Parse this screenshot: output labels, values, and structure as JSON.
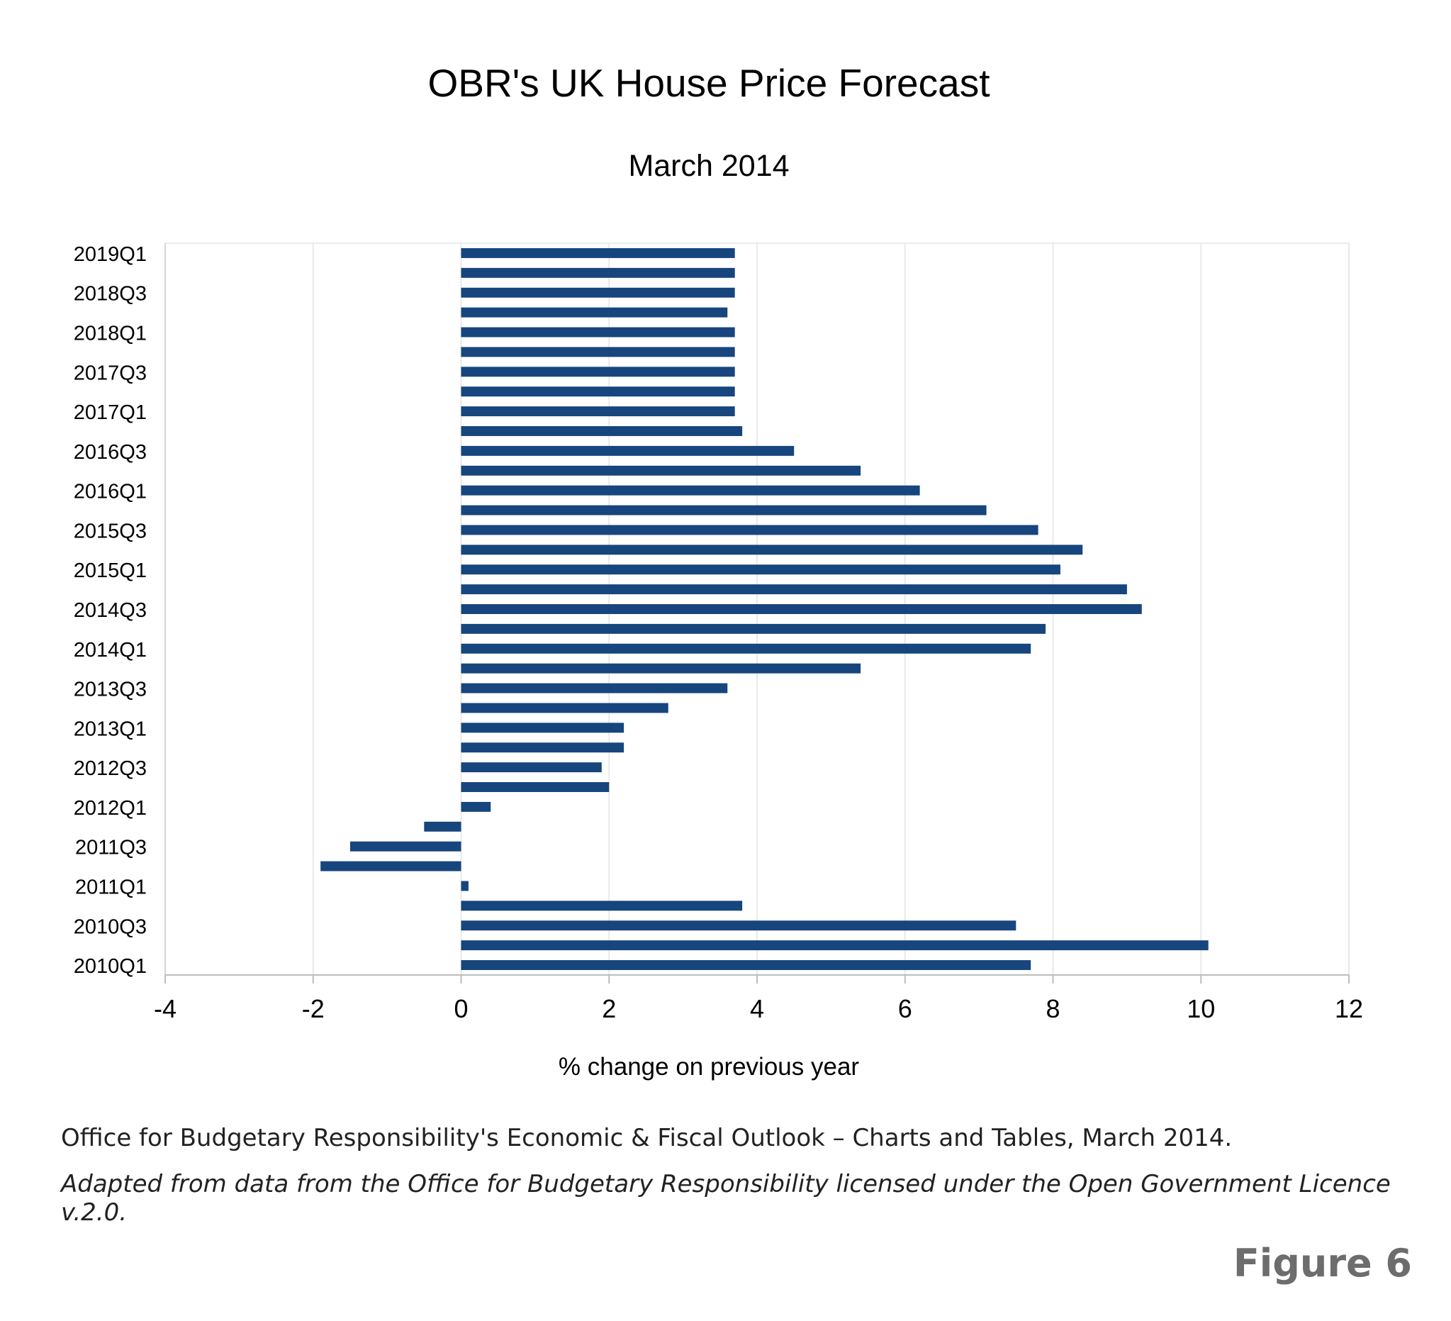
{
  "chart_data": {
    "type": "bar",
    "orientation": "horizontal",
    "title": "OBR's UK House Price Forecast",
    "subtitle": "March 2014",
    "xlabel": "% change on previous year",
    "ylabel": "",
    "xlim": [
      -4,
      12
    ],
    "xticks": [
      "-4",
      "-2",
      "0",
      "2",
      "4",
      "6",
      "8",
      "10",
      "12"
    ],
    "xtick_values": [
      -4,
      -2,
      0,
      2,
      4,
      6,
      8,
      10,
      12
    ],
    "grid": true,
    "bar_color": "#17457d",
    "categories": [
      "2010Q1",
      "2010Q2",
      "2010Q3",
      "2010Q4",
      "2011Q1",
      "2011Q2",
      "2011Q3",
      "2011Q4",
      "2012Q1",
      "2012Q2",
      "2012Q3",
      "2012Q4",
      "2013Q1",
      "2013Q2",
      "2013Q3",
      "2013Q4",
      "2014Q1",
      "2014Q2",
      "2014Q3",
      "2014Q4",
      "2015Q1",
      "2015Q2",
      "2015Q3",
      "2015Q4",
      "2016Q1",
      "2016Q2",
      "2016Q3",
      "2016Q4",
      "2017Q1",
      "2017Q2",
      "2017Q3",
      "2017Q4",
      "2018Q1",
      "2018Q2",
      "2018Q3",
      "2018Q4",
      "2019Q1"
    ],
    "labeled_categories": [
      "2010Q1",
      "2010Q3",
      "2011Q1",
      "2011Q3",
      "2012Q1",
      "2012Q3",
      "2013Q1",
      "2013Q3",
      "2014Q1",
      "2014Q3",
      "2015Q1",
      "2015Q3",
      "2016Q1",
      "2016Q3",
      "2017Q1",
      "2017Q3",
      "2018Q1",
      "2018Q3",
      "2019Q1"
    ],
    "values": [
      7.7,
      10.1,
      7.5,
      3.8,
      0.1,
      -1.9,
      -1.5,
      -0.5,
      0.4,
      2.0,
      1.9,
      2.2,
      2.2,
      2.8,
      3.6,
      5.4,
      7.7,
      7.9,
      9.2,
      9.0,
      8.1,
      8.4,
      7.8,
      7.1,
      6.2,
      5.4,
      4.5,
      3.8,
      3.7,
      3.7,
      3.7,
      3.7,
      3.7,
      3.6,
      3.7,
      3.7,
      3.7
    ]
  },
  "source_text": "Office for Budgetary Responsibility's Economic & Fiscal Outlook – Charts and Tables, March 2014.",
  "licence_text": "Adapted from data from the Office for Budgetary Responsibility licensed under the Open Government Licence v.2.0.",
  "figure_label": "Figure 6"
}
